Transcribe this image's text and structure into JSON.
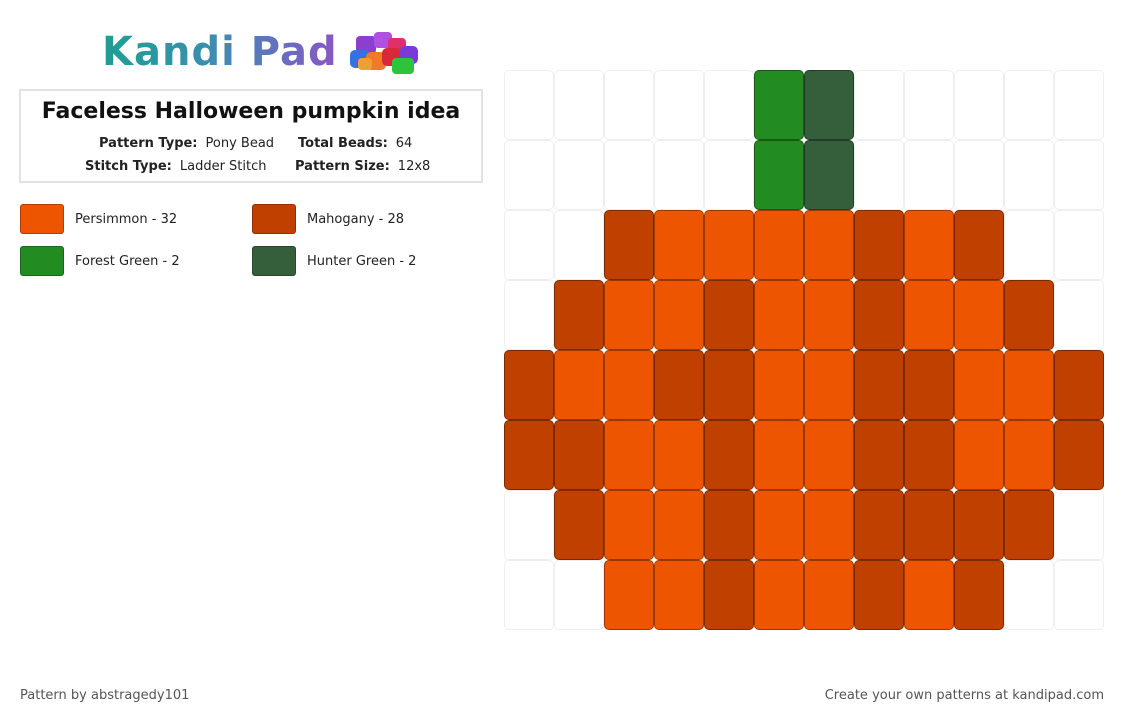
{
  "brand": {
    "name": "Kandi Pad",
    "logo_icon": "bead-pile-icon"
  },
  "pattern": {
    "title": "Faceless Halloween pumpkin idea",
    "pattern_type_label": "Pattern Type:",
    "pattern_type": "Pony Bead",
    "total_beads_label": "Total Beads:",
    "total_beads": "64",
    "stitch_type_label": "Stitch Type:",
    "stitch_type": "Ladder Stitch",
    "pattern_size_label": "Pattern Size:",
    "pattern_size": "12x8"
  },
  "legend": [
    {
      "label": "Persimmon - 32",
      "color": "#ee5500"
    },
    {
      "label": "Mahogany - 28",
      "color": "#c04000"
    },
    {
      "label": "Forest Green - 2",
      "color": "#228b22"
    },
    {
      "label": "Hunter Green - 2",
      "color": "#355e3b"
    }
  ],
  "grid": {
    "columns": 12,
    "rows": 8,
    "palette": {
      "P": "#ee5500",
      "M": "#c04000",
      "F": "#228b22",
      "H": "#355e3b"
    },
    "cells": [
      ".....FH.....",
      ".....FH.....",
      "..MPPPPMPM..",
      ".MPPMPPMPPM.",
      "MPPMMPPMMPPM",
      "MMPPMPPMMPPM",
      ".MPPMPPMMMM.",
      "..PPMPPMPM.."
    ]
  },
  "footer": {
    "credit": "Pattern by abstragedy101",
    "cta": "Create your own patterns at kandipad.com"
  }
}
